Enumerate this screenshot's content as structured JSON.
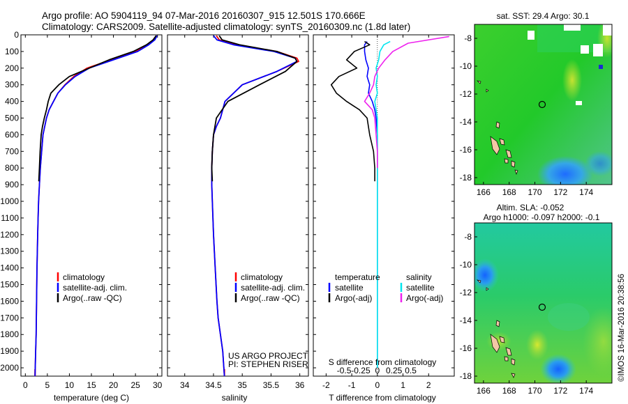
{
  "header": {
    "line1": "Argo profile: AO 5904119_94 07-Mar-2016 20160307_915 12.501S 170.666E",
    "line2": "Climatology: CARS2009. Satellite-adjusted climatology: synTS_20160309.nc (1.8d later)"
  },
  "credits": {
    "project": "US ARGO PROJECT",
    "pi": "PI: STEPHEN RISER",
    "watermark": "©IMOS 16-Mar-2016 20:38:56"
  },
  "colors": {
    "climatology": "#ff0000",
    "satellite": "#0000ff",
    "argo": "#000000",
    "salinity_satellite": "#00e5ee",
    "salinity_argo": "#ee22ee"
  },
  "chart_data": [
    {
      "type": "line",
      "panel": "temperature",
      "xlabel": "temperature (deg C)",
      "ylabel": "",
      "xlim": [
        -1,
        31
      ],
      "ylim": [
        2050,
        0
      ],
      "xticks": [
        0,
        5,
        10,
        15,
        20,
        25,
        30
      ],
      "yticks": [
        0,
        100,
        200,
        300,
        400,
        500,
        600,
        700,
        800,
        900,
        1000,
        1100,
        1200,
        1300,
        1400,
        1500,
        1600,
        1700,
        1800,
        1900,
        2000
      ],
      "legend_position": "center-right",
      "series": [
        {
          "name": "climatology",
          "color": "#ff0000",
          "x": [
            29.8,
            29.2,
            27.6,
            25.0,
            19.5,
            14.0,
            11.0,
            9.0,
            7.4,
            6.4,
            5.4,
            4.8,
            4.4,
            4.0,
            3.7,
            3.4,
            3.2,
            3.0,
            2.9,
            2.8,
            2.65,
            2.55,
            2.45,
            2.35,
            2.25,
            2.2
          ],
          "y": [
            5,
            30,
            60,
            100,
            150,
            200,
            250,
            300,
            350,
            400,
            450,
            500,
            550,
            600,
            700,
            800,
            900,
            1000,
            1100,
            1200,
            1400,
            1600,
            1800,
            1900,
            2000,
            2050
          ]
        },
        {
          "name": "satellite-adj. clim.",
          "color": "#0000ff",
          "x": [
            29.9,
            29.4,
            28.0,
            25.5,
            20.0,
            14.5,
            11.3,
            9.1,
            7.4,
            6.4,
            5.4,
            4.8,
            4.4,
            4.0,
            3.7,
            3.4,
            3.2,
            3.0,
            2.9,
            2.8,
            2.65,
            2.55,
            2.45,
            2.35,
            2.25,
            2.2
          ],
          "y": [
            5,
            30,
            60,
            100,
            150,
            200,
            250,
            300,
            350,
            400,
            450,
            500,
            550,
            600,
            700,
            800,
            900,
            1000,
            1100,
            1200,
            1400,
            1600,
            1800,
            1900,
            2000,
            2050
          ]
        },
        {
          "name": "Argo(..raw -QC)",
          "color": "#000000",
          "x": [
            29.7,
            29.0,
            27.5,
            24.5,
            19.0,
            14.5,
            10.0,
            7.6,
            5.8,
            5.2,
            4.8,
            4.3,
            3.9,
            3.6,
            3.35,
            3.2,
            3.05
          ],
          "y": [
            5,
            30,
            60,
            100,
            150,
            200,
            250,
            300,
            350,
            400,
            450,
            500,
            550,
            600,
            700,
            800,
            880
          ]
        }
      ]
    },
    {
      "type": "line",
      "panel": "salinity",
      "xlabel": "salinity",
      "ylabel": "",
      "xlim": [
        33.7,
        36.15
      ],
      "ylim": [
        2050,
        0
      ],
      "xticks": [
        34,
        34.5,
        35,
        35.5,
        36
      ],
      "legend_position": "center-right",
      "series": [
        {
          "name": "climatology",
          "color": "#ff0000",
          "x": [
            34.55,
            34.6,
            34.9,
            35.6,
            35.95,
            35.98,
            35.6,
            35.0,
            34.7,
            34.62,
            34.55,
            34.5,
            34.48,
            34.47,
            34.47,
            34.48,
            34.5,
            34.53,
            34.56,
            34.58,
            34.62,
            34.66,
            34.68,
            34.69
          ],
          "y": [
            5,
            30,
            60,
            100,
            140,
            160,
            220,
            300,
            400,
            500,
            550,
            600,
            700,
            800,
            900,
            1000,
            1200,
            1400,
            1600,
            1700,
            1800,
            1900,
            2000,
            2050
          ]
        },
        {
          "name": "satellite-adj. clim.",
          "color": "#0000ff",
          "x": [
            34.5,
            34.56,
            34.85,
            35.55,
            35.92,
            35.95,
            35.6,
            35.0,
            34.7,
            34.62,
            34.55,
            34.5,
            34.48,
            34.47,
            34.47,
            34.48,
            34.5,
            34.53,
            34.56,
            34.58,
            34.62,
            34.66,
            34.68,
            34.69
          ],
          "y": [
            5,
            30,
            60,
            100,
            140,
            160,
            220,
            300,
            400,
            500,
            550,
            600,
            700,
            800,
            900,
            1000,
            1200,
            1400,
            1600,
            1700,
            1800,
            1900,
            2000,
            2050
          ]
        },
        {
          "name": "Argo(..raw -QC)",
          "color": "#000000",
          "x": [
            34.6,
            34.65,
            34.95,
            35.6,
            35.92,
            35.95,
            35.75,
            35.3,
            34.75,
            34.55,
            34.5,
            34.48,
            34.47,
            34.48
          ],
          "y": [
            5,
            30,
            60,
            100,
            140,
            160,
            220,
            300,
            400,
            500,
            600,
            700,
            800,
            880
          ]
        }
      ]
    },
    {
      "type": "line",
      "panel": "difference",
      "xlabel": "T difference from climatology",
      "xlabel_top": "S difference from climatology",
      "xlim": [
        -2.5,
        3.0
      ],
      "ylim": [
        2050,
        0
      ],
      "xticks": [
        -2,
        -1,
        0,
        1,
        2
      ],
      "xticks_top": [
        "-0.5",
        "-0.25",
        "0",
        "0.25",
        "0.5"
      ],
      "legend_position": "center",
      "legend_titles": [
        "temperature",
        "salinity"
      ],
      "series": [
        {
          "name": "satellite",
          "group": "temperature",
          "color": "#0000ff",
          "x": [
            -0.4,
            -0.5,
            -0.5,
            -0.45,
            -0.35,
            -0.4,
            -0.3,
            -0.35,
            -0.2,
            -0.1,
            -0.05,
            0.0,
            0.0,
            0.0,
            0.0,
            0.0,
            0.0,
            0.0,
            0.0,
            0.0,
            0.0
          ],
          "y": [
            40,
            60,
            100,
            150,
            200,
            250,
            300,
            350,
            400,
            450,
            500,
            600,
            700,
            800,
            900,
            1000,
            1200,
            1400,
            1600,
            1800,
            2000
          ]
        },
        {
          "name": "Argo(-adj)",
          "group": "temperature",
          "color": "#000000",
          "x": [
            -0.5,
            -0.3,
            -0.9,
            -1.2,
            -0.8,
            -1.5,
            -1.8,
            -1.6,
            -1.2,
            -0.7,
            -0.4,
            -0.3,
            -0.15,
            -0.1,
            -0.1
          ],
          "y": [
            40,
            60,
            100,
            150,
            200,
            250,
            300,
            350,
            400,
            450,
            500,
            600,
            700,
            800,
            880
          ]
        },
        {
          "name": "satellite",
          "group": "salinity",
          "color": "#00e5ee",
          "x": [
            0.5,
            0.25,
            0.1,
            0.05,
            -0.05,
            0.0,
            -0.05,
            0.0,
            -0.1,
            -0.05,
            0.0,
            0.0,
            0.0,
            0.0,
            0.0,
            0.0,
            0.0,
            0.0,
            0.0,
            0.0,
            0.0
          ],
          "y": [
            40,
            60,
            100,
            150,
            200,
            250,
            300,
            350,
            400,
            450,
            500,
            600,
            700,
            800,
            900,
            1000,
            1200,
            1400,
            1600,
            1800,
            2000
          ]
        },
        {
          "name": "Argo(-adj)",
          "group": "salinity",
          "color": "#ee22ee",
          "x": [
            2.8,
            1.2,
            0.6,
            0.3,
            0.05,
            -0.1,
            -0.15,
            -0.3,
            -0.5,
            -0.2,
            -0.1,
            -0.05,
            0.0,
            0.0
          ],
          "y": [
            10,
            50,
            100,
            150,
            200,
            250,
            300,
            350,
            400,
            450,
            500,
            600,
            700,
            800
          ]
        }
      ]
    },
    {
      "type": "heatmap",
      "panel": "sst-map",
      "title": "sat. SST: 29.4 Argo: 30.1",
      "xlim": [
        165.3,
        176.0
      ],
      "ylim": [
        -18.5,
        -7.0
      ],
      "xticks": [
        166,
        168,
        170,
        172,
        174
      ],
      "yticks": [
        -8,
        -10,
        -12,
        -14,
        -16,
        -18
      ],
      "marker": {
        "lon": 170.666,
        "lat": -12.501
      }
    },
    {
      "type": "heatmap",
      "panel": "sla-map",
      "title": "Altim. SLA: -0.052",
      "subtitle": "Argo h1000: -0.097 h2000: -0.1",
      "xlim": [
        165.3,
        176.0
      ],
      "ylim": [
        -18.5,
        -7.0
      ],
      "xticks": [
        166,
        168,
        170,
        172,
        174
      ],
      "yticks": [
        -8,
        -10,
        -12,
        -14,
        -16,
        -18
      ],
      "marker": {
        "lon": 170.666,
        "lat": -12.501
      }
    }
  ]
}
